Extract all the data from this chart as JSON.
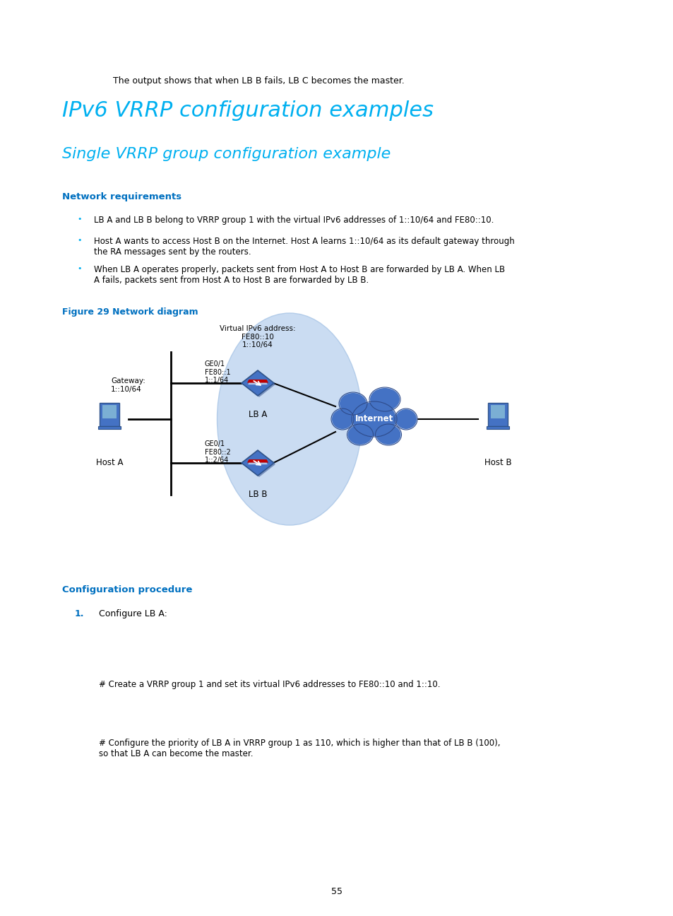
{
  "background_color": "#ffffff",
  "page_width": 9.54,
  "page_height": 12.96,
  "intro_text": "The output shows that when LB B fails, LB C becomes the master.",
  "h1_title": "IPv6 VRRP configuration examples",
  "h2_title": "Single VRRP group configuration example",
  "h3_network": "Network requirements",
  "bullet1": "LB A and LB B belong to VRRP group 1 with the virtual IPv6 addresses of 1::10/64 and FE80::10.",
  "bullet2": "Host A wants to access Host B on the Internet. Host A learns 1::10/64 as its default gateway through\nthe RA messages sent by the routers.",
  "bullet3": "When LB A operates properly, packets sent from Host A to Host B are forwarded by LB A. When LB\nA fails, packets sent from Host A to Host B are forwarded by LB B.",
  "fig_label": "Figure 29 Network diagram",
  "h3_config": "Configuration procedure",
  "config_step1": "Configure LB A:",
  "comment1": "# Create a VRRP group 1 and set its virtual IPv6 addresses to FE80::10 and 1::10.",
  "comment2": "# Configure the priority of LB A in VRRP group 1 as 110, which is higher than that of LB B (100),\nso that LB A can become the master.",
  "page_number": "55",
  "cyan_color": "#00b0f0",
  "dark_cyan": "#0070c0",
  "text_color": "#000000",
  "light_blue_ellipse": "#c5d9f1",
  "internet_blue": "#4472c4"
}
